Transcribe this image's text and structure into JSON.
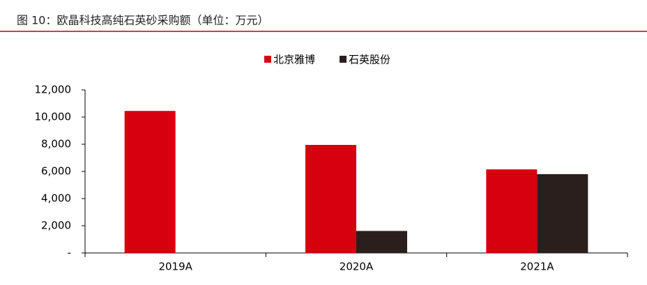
{
  "chart_data": {
    "type": "bar",
    "title": "图 10：欧晶科技高纯石英砂采购额（单位：万元）",
    "categories": [
      "2019A",
      "2020A",
      "2021A"
    ],
    "series": [
      {
        "name": "北京雅博",
        "color": "#d7000f",
        "values": [
          10450,
          7950,
          6150
        ]
      },
      {
        "name": "石英股份",
        "color": "#2a1f1c",
        "values": [
          null,
          1620,
          5800
        ]
      }
    ],
    "ylim": [
      0,
      12000
    ],
    "yticks": [
      {
        "value": 0,
        "label": "-"
      },
      {
        "value": 2000,
        "label": "2,000"
      },
      {
        "value": 4000,
        "label": "4,000"
      },
      {
        "value": 6000,
        "label": "6,000"
      },
      {
        "value": 8000,
        "label": "8,000"
      },
      {
        "value": 10000,
        "label": "10,000"
      },
      {
        "value": 12000,
        "label": "12,000"
      }
    ],
    "grid": false,
    "legend": "top"
  }
}
